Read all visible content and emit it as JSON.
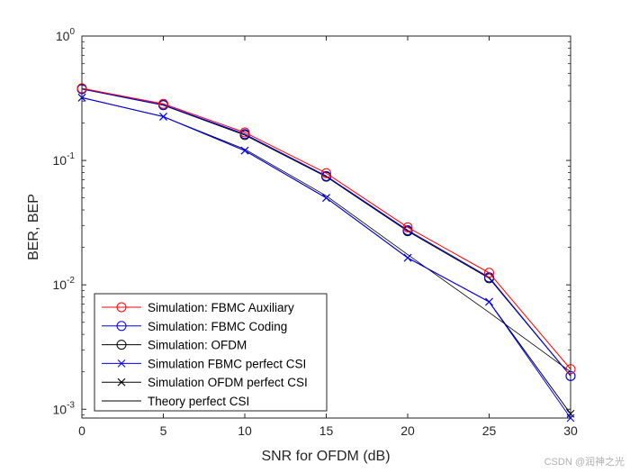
{
  "chart_data": {
    "type": "line",
    "yscale": "log",
    "xlabel": "SNR for OFDM (dB)",
    "ylabel": "BER, BEP",
    "xlim": [
      0,
      30
    ],
    "ylim": [
      0.00085,
      1
    ],
    "xticks": [
      0,
      5,
      10,
      15,
      20,
      25,
      30
    ],
    "xtick_labels": [
      "0",
      "5",
      "10",
      "15",
      "20",
      "25",
      "30"
    ],
    "yticks": [
      {
        "value": 1,
        "base": "10",
        "exp": "0"
      },
      {
        "value": 0.1,
        "base": "10",
        "exp": "-1"
      },
      {
        "value": 0.01,
        "base": "10",
        "exp": "-2"
      },
      {
        "value": 0.001,
        "base": "10",
        "exp": "-3"
      }
    ],
    "legend_position": "bottom-left",
    "x": [
      0,
      5,
      10,
      15,
      20,
      25,
      30
    ],
    "series": [
      {
        "name": "Simulation: FBMC Auxiliary",
        "color": "#ff0000",
        "marker": "circle",
        "values": [
          0.38,
          0.285,
          0.168,
          0.079,
          0.029,
          0.0125,
          0.0021
        ]
      },
      {
        "name": "Simulation: FBMC Coding",
        "color": "#0000ff",
        "marker": "circle",
        "values": [
          0.375,
          0.28,
          0.163,
          0.075,
          0.0275,
          0.0115,
          0.00185
        ]
      },
      {
        "name": "Simulation: OFDM",
        "color": "#000000",
        "marker": "circle",
        "values": [
          0.375,
          0.278,
          0.16,
          0.074,
          0.027,
          0.0113,
          0.00185
        ]
      },
      {
        "name": "Simulation FBMC perfect CSI",
        "color": "#0000ff",
        "marker": "x",
        "values": [
          0.32,
          0.225,
          0.12,
          0.05,
          0.0165,
          0.0073,
          0.00085
        ]
      },
      {
        "name": "Simulation OFDM perfect CSI",
        "color": "#000000",
        "marker": "x",
        "values": [
          0.32,
          0.225,
          0.12,
          0.05,
          0.0165,
          0.0073,
          0.00092
        ]
      },
      {
        "name": "Theory perfect CSI",
        "color": "#000000",
        "marker": "none",
        "values": [
          0.32,
          0.225,
          0.123,
          0.052,
          0.0175,
          0.006,
          0.002
        ]
      }
    ]
  },
  "watermark": "CSDN @润神之光"
}
